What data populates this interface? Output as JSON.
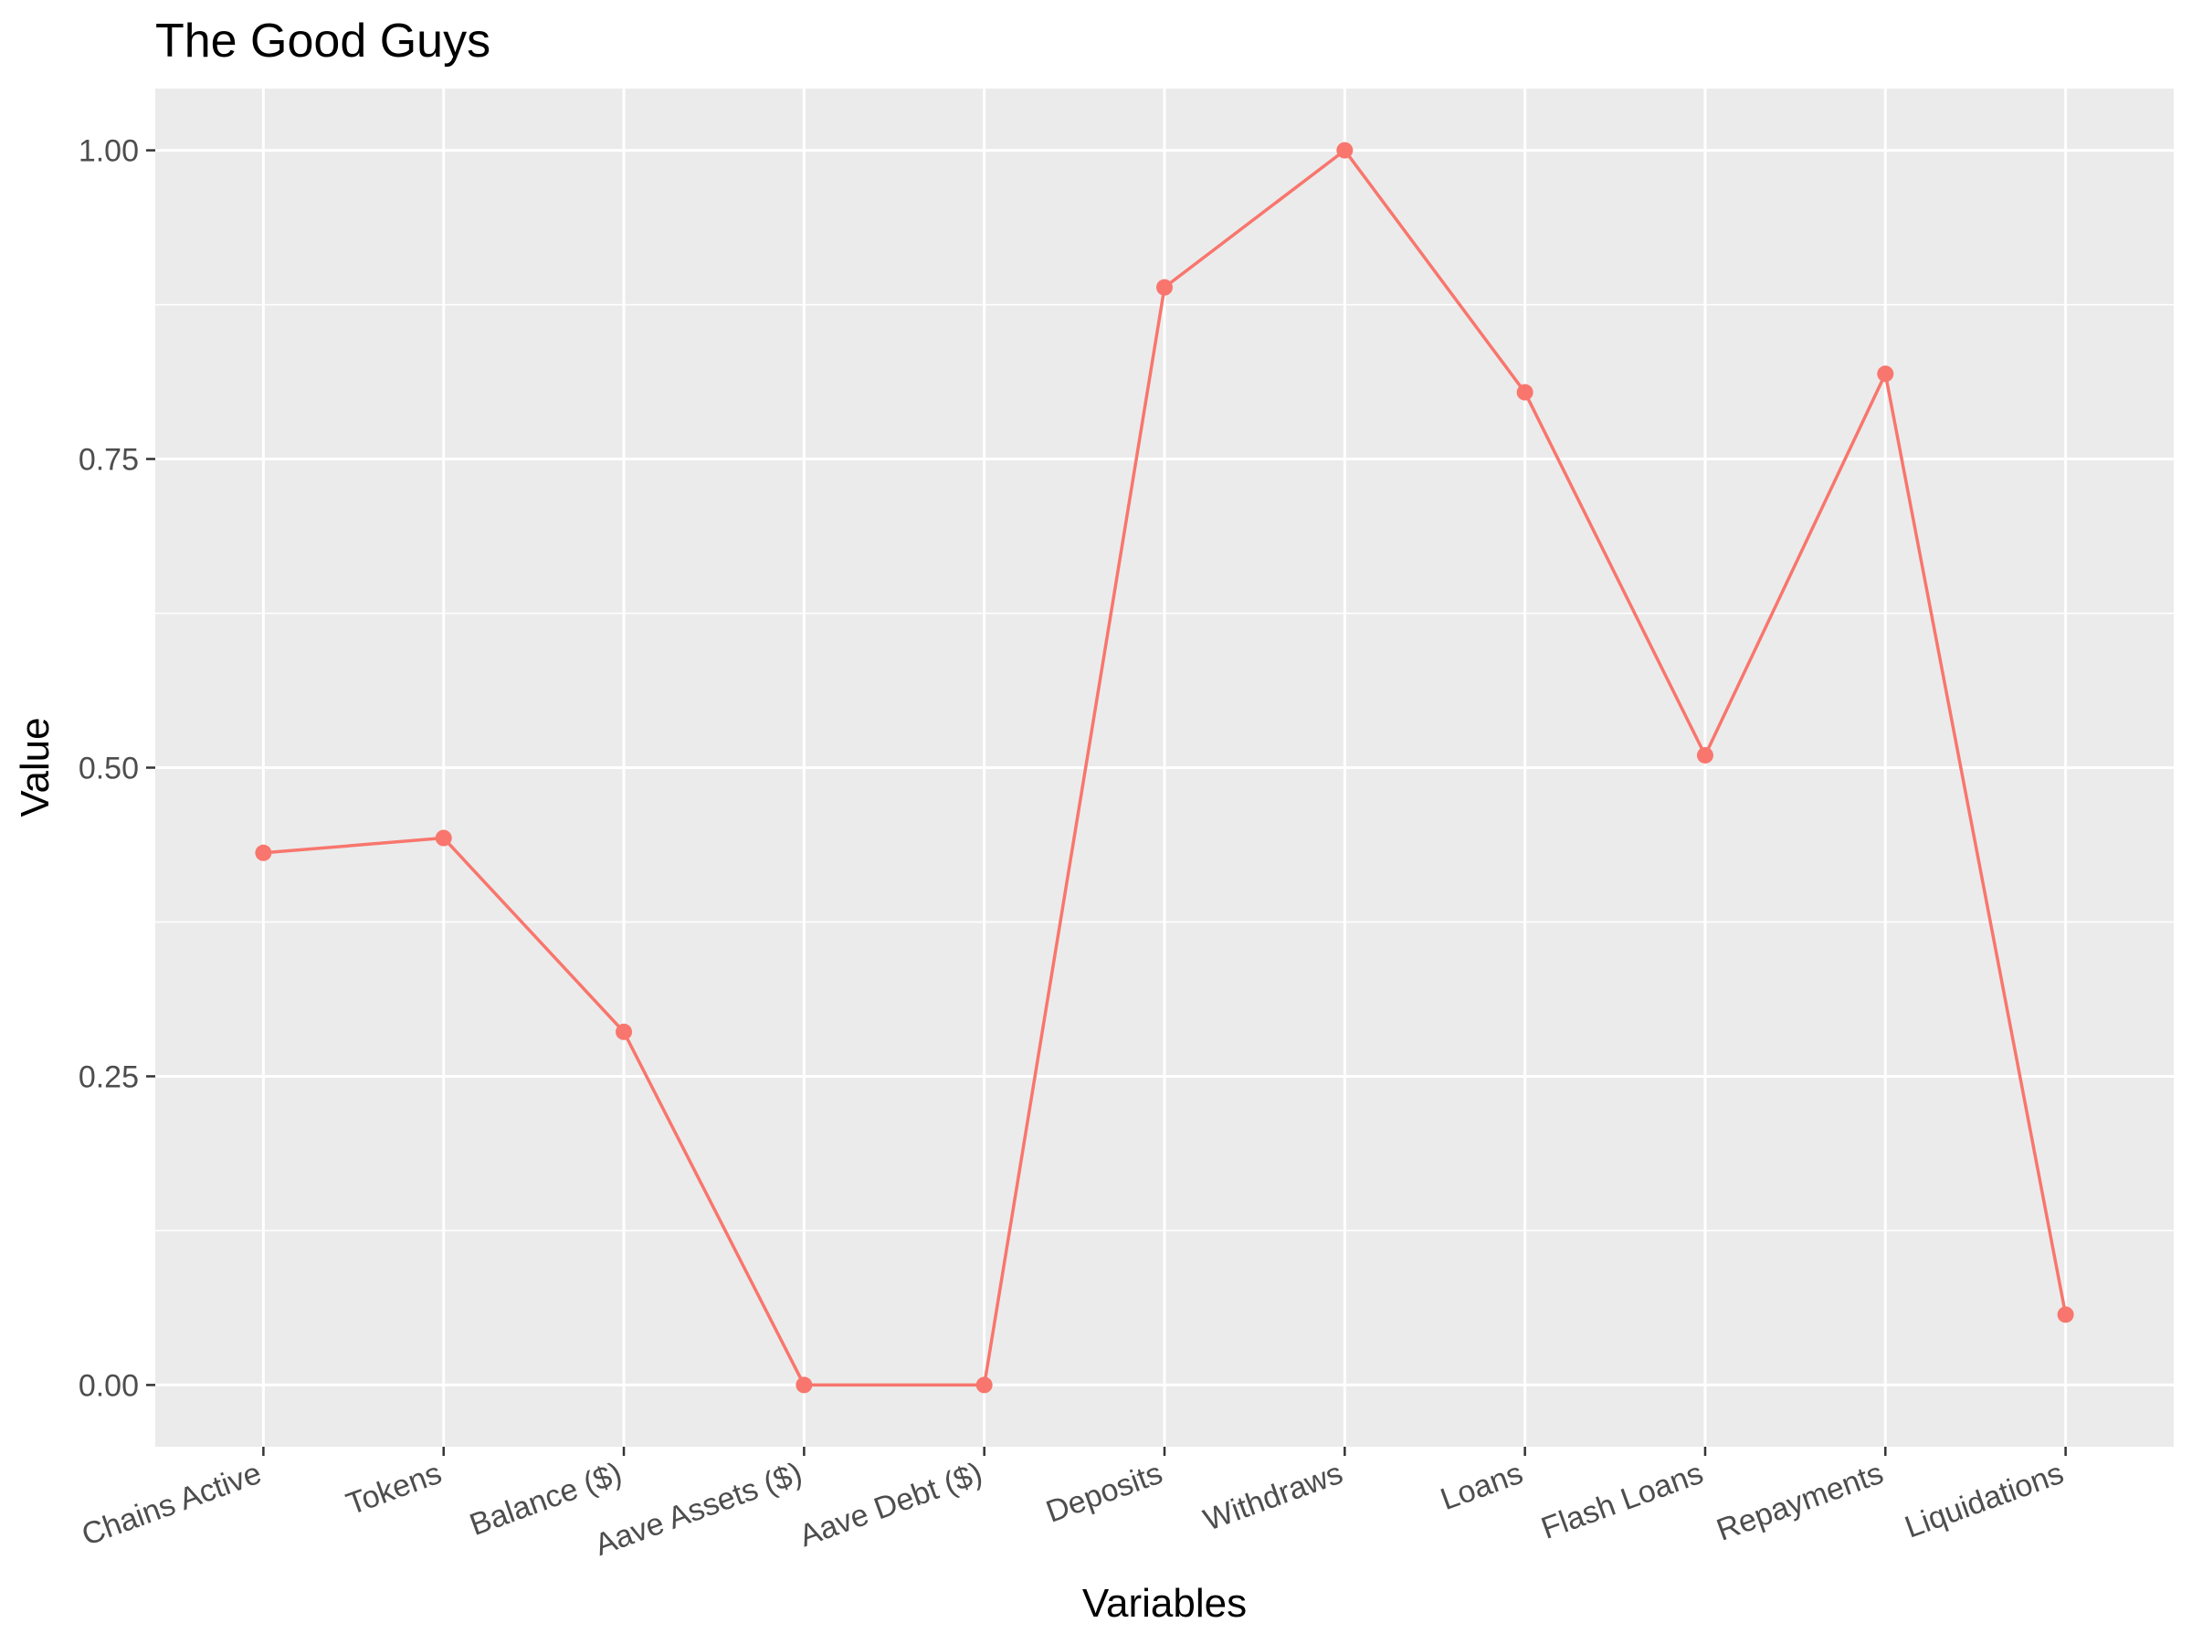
{
  "chart_data": {
    "type": "line",
    "title": "The Good Guys",
    "xlabel": "Variables",
    "ylabel": "Value",
    "categories": [
      "Chains Active",
      "Tokens",
      "Balance ($)",
      "Aave Assets ($)",
      "Aave Debt ($)",
      "Deposits",
      "Withdraws",
      "Loans",
      "Flash Loans",
      "Repayments",
      "Liquidations"
    ],
    "series": [
      {
        "values": [
          0.431,
          0.443,
          0.286,
          0.0,
          0.0,
          0.889,
          1.0,
          0.804,
          0.51,
          0.819,
          0.057
        ]
      }
    ],
    "ylim": [
      -0.05,
      1.05
    ],
    "yticks": [
      0.0,
      0.25,
      0.5,
      0.75,
      1.0
    ],
    "ytick_labels": [
      "0.00",
      "0.25",
      "0.50",
      "0.75",
      "1.00"
    ],
    "grid": true,
    "colors": {
      "series": "#F8766D",
      "panel": "#EBEBEB",
      "grid": "#FFFFFF"
    }
  }
}
